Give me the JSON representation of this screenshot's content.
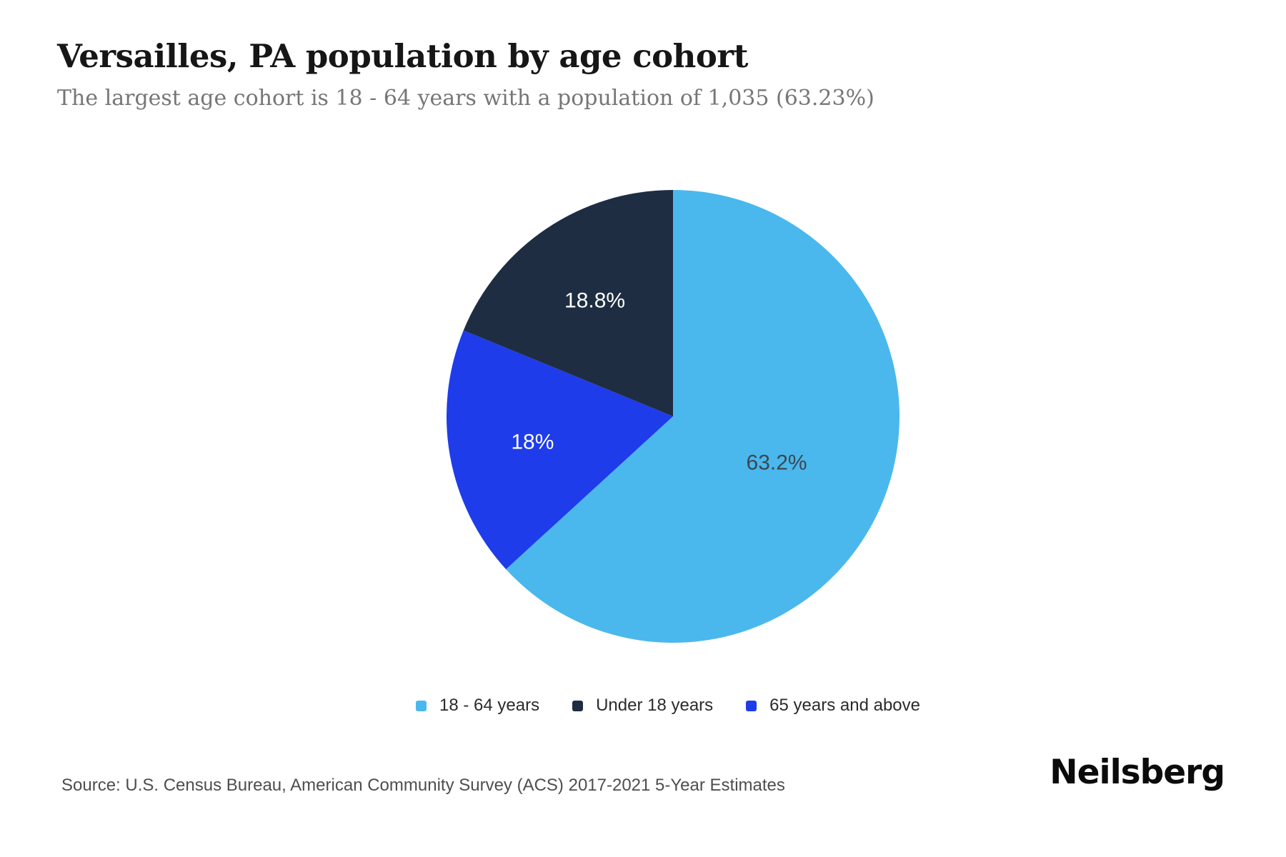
{
  "header": {
    "title": "Versailles, PA population by age cohort",
    "subtitle": "The largest age cohort is 18 - 64 years with a population of 1,035 (63.23%)"
  },
  "chart_data": {
    "type": "pie",
    "title": "Versailles, PA population by age cohort",
    "slices": [
      {
        "label": "18 - 64 years",
        "value_pct": 63.2,
        "display": "63.2%",
        "color": "#4AB8EC",
        "label_color": "#3B4754"
      },
      {
        "label": "65 years and above",
        "value_pct": 18.0,
        "display": "18%",
        "color": "#1E3CEA",
        "label_color": "#FFFFFF"
      },
      {
        "label": "Under 18 years",
        "value_pct": 18.8,
        "display": "18.8%",
        "color": "#1E2D42",
        "label_color": "#FFFFFF"
      }
    ],
    "legend_order": [
      0,
      2,
      1
    ],
    "layout": {
      "start_angle_deg": 0,
      "clockwise": true,
      "label_radius_frac": [
        0.5,
        0.63,
        0.62
      ],
      "legend_position": "bottom"
    }
  },
  "footer": {
    "source": "Source: U.S. Census Bureau, American Community Survey (ACS) 2017-2021 5-Year Estimates",
    "brand": "Neilsberg"
  }
}
